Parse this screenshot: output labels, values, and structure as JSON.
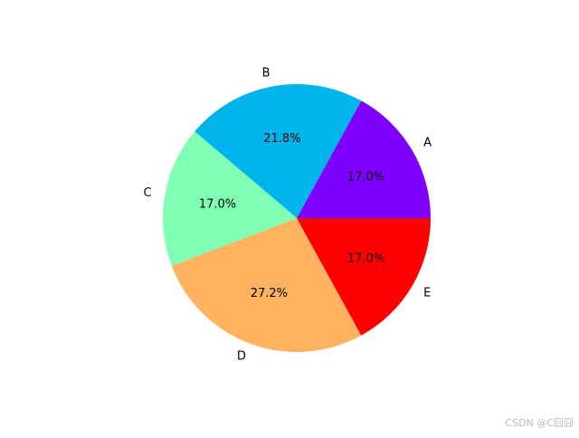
{
  "chart_data": {
    "type": "pie",
    "categories": [
      "A",
      "B",
      "C",
      "D",
      "E"
    ],
    "values": [
      17.0,
      21.8,
      17.0,
      27.2,
      17.0
    ],
    "value_labels": [
      "17.0%",
      "21.8%",
      "17.0%",
      "27.2%",
      "17.0%"
    ],
    "colors": [
      "#8000ff",
      "#00b5eb",
      "#80ffb4",
      "#ffb360",
      "#ff0000"
    ],
    "watermark": "CSDN @C囧囧"
  }
}
